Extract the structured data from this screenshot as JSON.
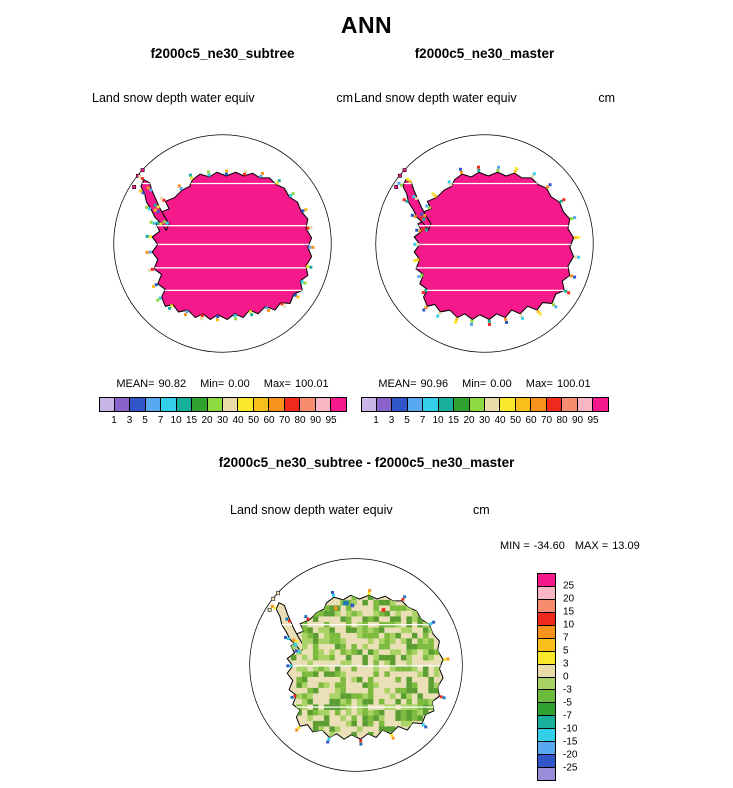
{
  "page_title": "ANN",
  "panels": [
    {
      "title": "f2000c5_ne30_subtree",
      "field": "Land snow depth water equiv",
      "units": "cm",
      "stats": {
        "mean_label": "MEAN=",
        "mean": "90.82",
        "min_label": "Min=",
        "min": "0.00",
        "max_label": "Max=",
        "max": "100.01"
      },
      "colorbar": {
        "ticks": [
          "1",
          "3",
          "5",
          "7",
          "10",
          "15",
          "20",
          "30",
          "40",
          "50",
          "60",
          "70",
          "80",
          "90",
          "95"
        ],
        "colors": [
          "#C9B5E8",
          "#8A63C9",
          "#2F55C9",
          "#58A8EF",
          "#33CFE8",
          "#17AF9B",
          "#2EA12F",
          "#8FD940",
          "#E9DCA9",
          "#F8E72B",
          "#F9BE19",
          "#F8921B",
          "#EF2A1D",
          "#F88C6E",
          "#F9B7C6",
          "#F5198C"
        ]
      }
    },
    {
      "title": "f2000c5_ne30_master",
      "field": "Land snow depth water equiv",
      "units": "cm",
      "stats": {
        "mean_label": "MEAN=",
        "mean": "90.96",
        "min_label": "Min=",
        "min": "0.00",
        "max_label": "Max=",
        "max": "100.01"
      },
      "colorbar": {
        "ticks": [
          "1",
          "3",
          "5",
          "7",
          "10",
          "15",
          "20",
          "30",
          "40",
          "50",
          "60",
          "70",
          "80",
          "90",
          "95"
        ],
        "colors": [
          "#C9B5E8",
          "#8A63C9",
          "#2F55C9",
          "#58A8EF",
          "#33CFE8",
          "#17AF9B",
          "#2EA12F",
          "#8FD940",
          "#E9DCA9",
          "#F8E72B",
          "#F9BE19",
          "#F8921B",
          "#EF2A1D",
          "#F88C6E",
          "#F9B7C6",
          "#F5198C"
        ]
      }
    }
  ],
  "diff": {
    "title": "f2000c5_ne30_subtree - f2000c5_ne30_master",
    "field": "Land snow depth water equiv",
    "units": "cm",
    "minmax": {
      "min_label": "MIN =",
      "min": "-34.60",
      "max_label": "MAX =",
      "max": "13.09"
    },
    "colorbar": {
      "ticks": [
        "25",
        "20",
        "15",
        "10",
        "7",
        "5",
        "3",
        "0",
        "-3",
        "-5",
        "-7",
        "-10",
        "-15",
        "-20",
        "-25"
      ],
      "colors": [
        "#F5198C",
        "#F9B7C6",
        "#F88C6E",
        "#EF2A1D",
        "#F8921B",
        "#F9BE19",
        "#F8E72B",
        "#E9DCA9",
        "#A9D465",
        "#6CBB3C",
        "#2EA12F",
        "#17AF9B",
        "#33CFE8",
        "#58A8EF",
        "#2F55C9",
        "#9A8CD8"
      ]
    }
  },
  "map_colors": {
    "land_fill": "#F5198C",
    "diff_land_fill": "#EADFB7",
    "outline": "#000000",
    "grid_line": "#FFFFFF",
    "coast_speckles": [
      "#F8E72B",
      "#F8921B",
      "#33CFE8",
      "#17AF9B",
      "#2F55C9",
      "#8FD940",
      "#EF2A1D",
      "#F9BE19",
      "#58A8EF",
      "#E9DCA9"
    ],
    "diff_coast_speckles": [
      "#1B75BB",
      "#33CFE8",
      "#F8921B",
      "#EF2A1D",
      "#2F55C9",
      "#F8E72B"
    ],
    "diff_mottle": [
      "#5A9E32",
      "#7CBB3E",
      "#A9D465"
    ]
  },
  "chart_data": [
    {
      "type": "heatmap",
      "subtype": "south-polar-stereographic-filled-contour-map",
      "title": "f2000c5_ne30_subtree",
      "variable": "Land snow depth water equiv",
      "units": "cm",
      "contour_levels": [
        1,
        3,
        5,
        7,
        10,
        15,
        20,
        30,
        40,
        50,
        60,
        70,
        80,
        90,
        95
      ],
      "stats": {
        "mean": 90.82,
        "min": 0.0,
        "max": 100.01
      },
      "legend_position": "bottom",
      "region": "Antarctica",
      "dominant_value_note": "interior land above 95 cm (magenta), coastal fringe spans all levels, ocean blank"
    },
    {
      "type": "heatmap",
      "subtype": "south-polar-stereographic-filled-contour-map",
      "title": "f2000c5_ne30_master",
      "variable": "Land snow depth water equiv",
      "units": "cm",
      "contour_levels": [
        1,
        3,
        5,
        7,
        10,
        15,
        20,
        30,
        40,
        50,
        60,
        70,
        80,
        90,
        95
      ],
      "stats": {
        "mean": 90.96,
        "min": 0.0,
        "max": 100.01
      },
      "legend_position": "bottom",
      "region": "Antarctica",
      "dominant_value_note": "interior land above 95 cm (magenta), coastal fringe spans all levels, ocean blank"
    },
    {
      "type": "heatmap",
      "subtype": "south-polar-stereographic-difference-map",
      "title": "f2000c5_ne30_subtree - f2000c5_ne30_master",
      "variable": "Land snow depth water equiv",
      "units": "cm",
      "contour_levels": [
        25,
        20,
        15,
        10,
        7,
        5,
        3,
        0,
        -3,
        -5,
        -7,
        -10,
        -15,
        -20,
        -25
      ],
      "stats": {
        "min": -34.6,
        "max": 13.09
      },
      "legend_position": "right",
      "region": "Antarctica",
      "dominant_value_note": "interior mottled 0 to 3 (beige) and -3 to 0 (green); scattered stronger +/- values at coast"
    }
  ]
}
